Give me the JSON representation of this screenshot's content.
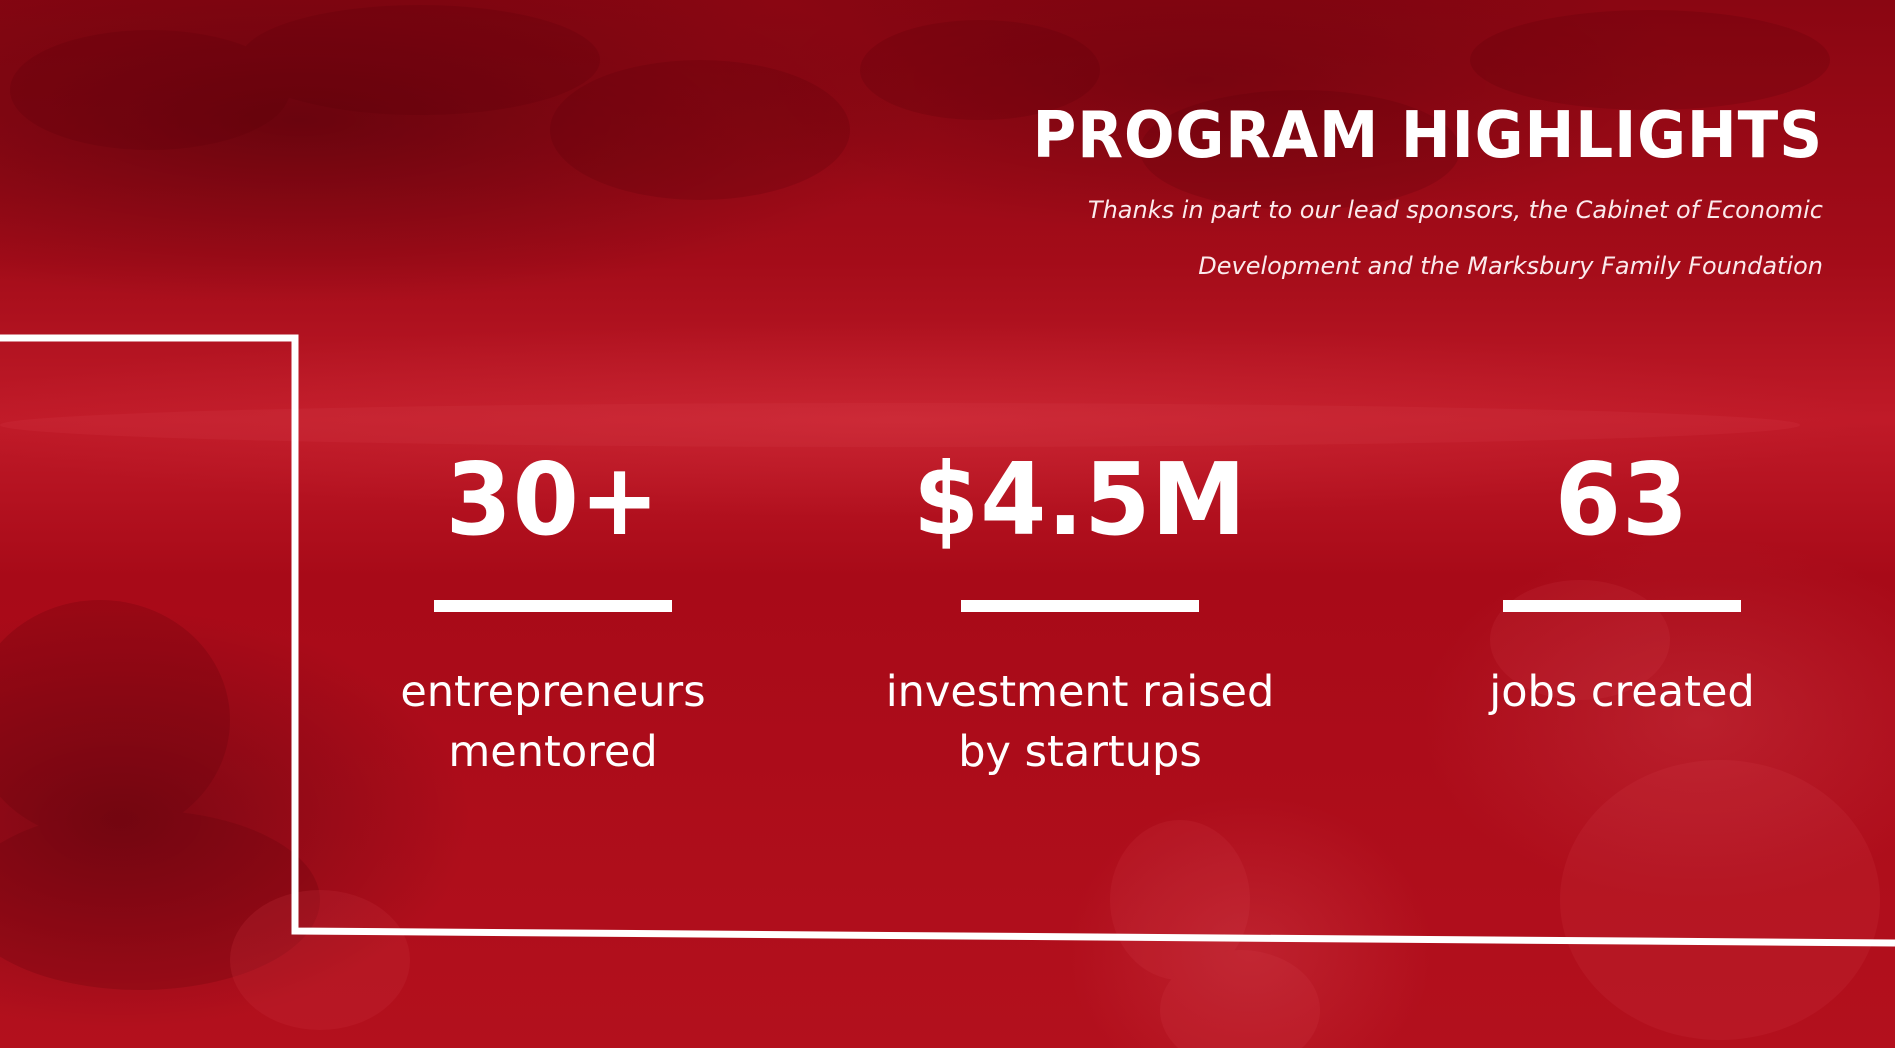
{
  "slide": {
    "title": "PROGRAM HIGHLIGHTS",
    "subtitle_line1": "Thanks in part to our lead sponsors, the Cabinet of Economic",
    "subtitle_line2": "Development and the Marksbury Family Foundation",
    "background_color": "#b0101d",
    "text_color": "#ffffff"
  },
  "stats": [
    {
      "value": "30+",
      "label": "entrepreneurs\nmentored"
    },
    {
      "value": "$4.5M",
      "label": "investment raised\nby startups"
    },
    {
      "value": "63",
      "label": "jobs created"
    }
  ]
}
